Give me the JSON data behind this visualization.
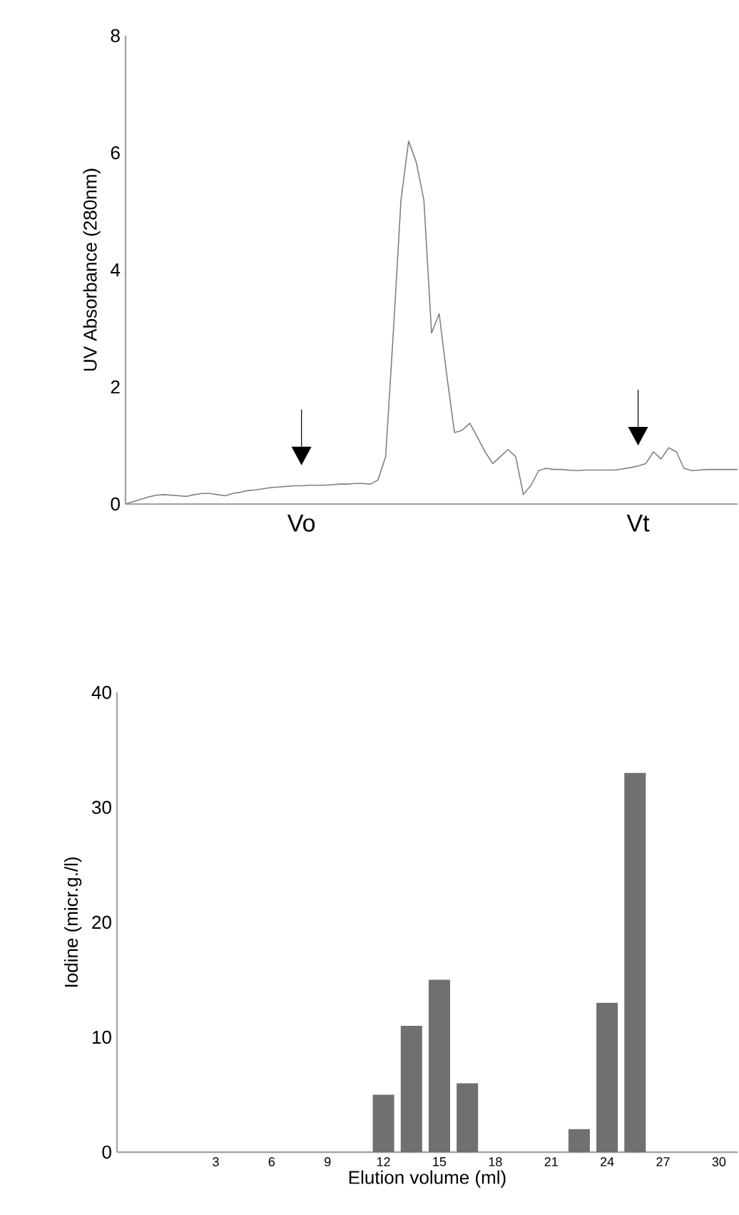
{
  "chart_data": [
    {
      "type": "line",
      "ylabel": "UV Absorbance (280nm)",
      "categories": [
        null,
        null,
        null,
        null,
        null,
        null,
        null,
        null,
        null,
        null,
        null,
        null,
        null,
        null,
        null,
        null,
        null,
        null,
        null,
        null,
        null,
        null,
        null,
        "Vo",
        null,
        null,
        null,
        null,
        null,
        null,
        null,
        null,
        null,
        null,
        null,
        null,
        null,
        null,
        null,
        null,
        null,
        null,
        null,
        null,
        null,
        null,
        null,
        null,
        null,
        null,
        null,
        null,
        null,
        null,
        null,
        null,
        null,
        null,
        null,
        null,
        null,
        null,
        null,
        null,
        null,
        null,
        null,
        "Vt",
        null,
        null,
        null,
        null,
        null,
        null,
        null,
        null,
        null,
        null,
        null,
        null,
        null
      ],
      "values": [
        0,
        0.04,
        0.08,
        0.12,
        0.15,
        0.16,
        0.15,
        0.14,
        0.13,
        0.16,
        0.18,
        0.18,
        0.16,
        0.14,
        0.18,
        0.2,
        0.23,
        0.24,
        0.26,
        0.28,
        0.29,
        0.3,
        0.31,
        0.31,
        0.32,
        0.32,
        0.32,
        0.33,
        0.34,
        0.34,
        0.35,
        0.35,
        0.34,
        0.41,
        0.81,
        2.92,
        5.19,
        6.2,
        5.84,
        5.19,
        2.92,
        3.25,
        2.19,
        1.22,
        1.26,
        1.38,
        1.14,
        0.89,
        0.69,
        0.81,
        0.93,
        0.81,
        0.16,
        0.32,
        0.57,
        0.61,
        0.59,
        0.59,
        0.58,
        0.57,
        0.58,
        0.58,
        0.58,
        0.58,
        0.58,
        0.6,
        0.62,
        0.65,
        0.69,
        0.89,
        0.77,
        0.96,
        0.89,
        0.61,
        0.57,
        0.58,
        0.59,
        0.59,
        0.59,
        0.59,
        0.59
      ],
      "color": "#808080",
      "ylim": [
        0,
        8
      ],
      "yticks": [
        0,
        2,
        4,
        6,
        8
      ]
    },
    {
      "type": "bar",
      "xlabel": "Elution volume (ml)",
      "ylabel": "Iodine (micr.g./l)",
      "x": [
        12,
        13.5,
        15,
        16.5,
        22.5,
        24,
        25.5
      ],
      "values": [
        5,
        11,
        15,
        6,
        2,
        13,
        33
      ],
      "color": "#707070",
      "xlim": [
        -2.3,
        31
      ],
      "xticks": [
        3,
        6,
        9,
        12,
        15,
        18,
        21,
        24,
        27,
        30
      ],
      "ylim": [
        0,
        40
      ],
      "yticks": [
        0,
        10,
        20,
        30,
        40
      ]
    }
  ]
}
